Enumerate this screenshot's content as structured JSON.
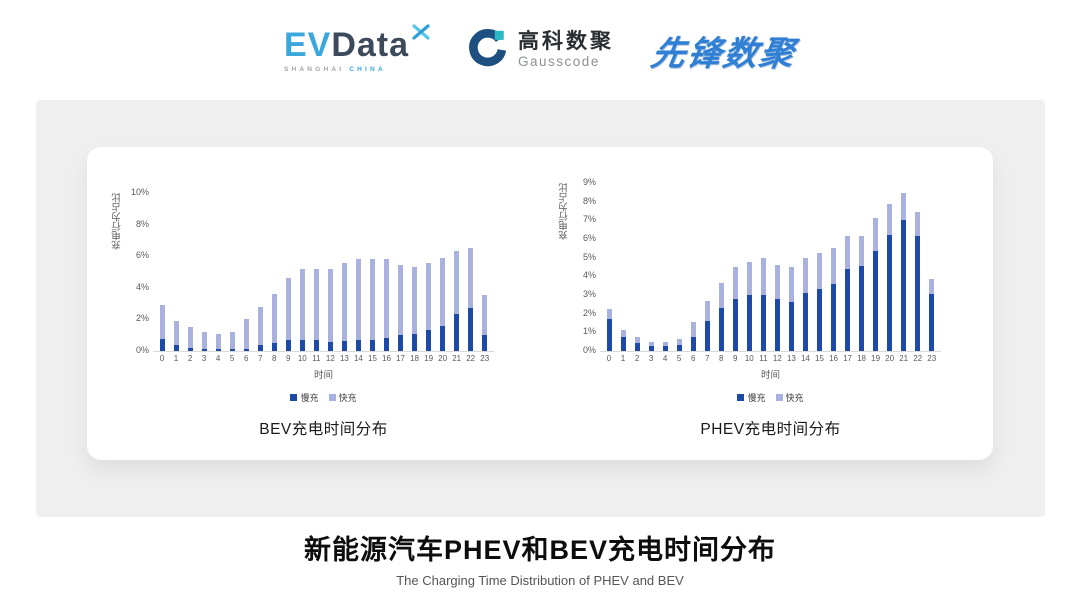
{
  "header": {
    "evdata_logo": {
      "ev": "EV",
      "data": "Data",
      "tagline_left": "SHANGHAI",
      "tagline_right": "CHINA"
    },
    "gausscode_logo": {
      "name_cn": "高科数聚",
      "name_en": "Gausscode"
    },
    "pioneer_logo": {
      "name": "先锋数聚"
    }
  },
  "colors": {
    "slow_charge": "#1c4aa6",
    "fast_charge": "#a9b1de",
    "panel_bg": "#efefef",
    "axis_text": "#595959",
    "evdata_blue": "#3aa7dc",
    "evdata_dark": "#3d4a5c",
    "gausscode_blue": "#1d4f80",
    "gausscode_teal": "#29b8c5",
    "pioneer_blue": "#2f7fd5"
  },
  "chart_data": [
    {
      "type": "bar",
      "stacked": true,
      "title": "BEV充电时间分布",
      "xlabel": "时间",
      "ylabel": "充电行为占比",
      "categories": [
        "0",
        "1",
        "2",
        "3",
        "4",
        "5",
        "6",
        "7",
        "8",
        "9",
        "10",
        "11",
        "12",
        "13",
        "14",
        "15",
        "16",
        "17",
        "18",
        "19",
        "20",
        "21",
        "22",
        "23"
      ],
      "series": [
        {
          "name": "慢充",
          "values": [
            0.75,
            0.35,
            0.2,
            0.1,
            0.1,
            0.1,
            0.15,
            0.35,
            0.5,
            0.7,
            0.7,
            0.7,
            0.6,
            0.65,
            0.7,
            0.7,
            0.8,
            1.0,
            1.1,
            1.3,
            1.6,
            2.35,
            2.7,
            1.0
          ]
        },
        {
          "name": "快充",
          "values": [
            2.15,
            1.55,
            1.3,
            1.1,
            1.0,
            1.1,
            1.85,
            2.45,
            3.1,
            3.9,
            4.5,
            4.5,
            4.6,
            4.95,
            5.1,
            5.1,
            5.0,
            4.45,
            4.2,
            4.25,
            4.3,
            3.95,
            3.8,
            2.55
          ]
        }
      ],
      "ylim": [
        0,
        10
      ],
      "ytick_values": [
        0,
        2,
        4,
        6,
        8,
        10
      ],
      "ytick_labels": [
        "0%",
        "2%",
        "4%",
        "6%",
        "8%",
        "10%"
      ],
      "legend": [
        "慢充",
        "快充"
      ],
      "legend_position": "bottom",
      "grid": false
    },
    {
      "type": "bar",
      "stacked": true,
      "title": "PHEV充电时间分布",
      "xlabel": "时间",
      "ylabel": "充电行为占比",
      "categories": [
        "0",
        "1",
        "2",
        "3",
        "4",
        "5",
        "6",
        "7",
        "8",
        "9",
        "10",
        "11",
        "12",
        "13",
        "14",
        "15",
        "16",
        "17",
        "18",
        "19",
        "20",
        "21",
        "22",
        "23"
      ],
      "series": [
        {
          "name": "慢充",
          "values": [
            1.7,
            0.75,
            0.45,
            0.25,
            0.25,
            0.3,
            0.75,
            1.6,
            2.3,
            2.8,
            3.0,
            3.0,
            2.8,
            2.6,
            3.1,
            3.3,
            3.6,
            4.4,
            4.55,
            5.35,
            6.2,
            7.0,
            6.15,
            3.05
          ]
        },
        {
          "name": "快充",
          "values": [
            0.55,
            0.4,
            0.3,
            0.25,
            0.25,
            0.35,
            0.8,
            1.1,
            1.35,
            1.7,
            1.75,
            2.0,
            1.8,
            1.9,
            1.9,
            1.95,
            1.9,
            1.75,
            1.6,
            1.75,
            1.7,
            1.45,
            1.3,
            0.8
          ]
        }
      ],
      "ylim": [
        0,
        9
      ],
      "ytick_values": [
        0,
        1,
        2,
        3,
        4,
        5,
        6,
        7,
        8,
        9
      ],
      "ytick_labels": [
        "0%",
        "1%",
        "2%",
        "3%",
        "4%",
        "5%",
        "6%",
        "7%",
        "8%",
        "9%"
      ],
      "legend": [
        "慢充",
        "快充"
      ],
      "legend_position": "bottom",
      "grid": false
    }
  ],
  "footer": {
    "title": "新能源汽车PHEV和BEV充电时间分布",
    "subtitle": "The Charging Time Distribution of PHEV and BEV"
  }
}
